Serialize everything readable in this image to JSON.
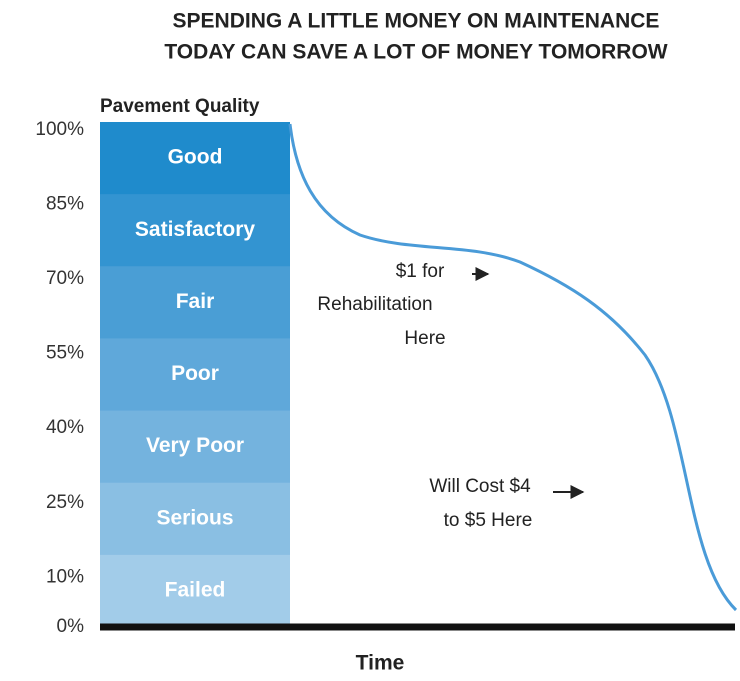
{
  "chart_data": {
    "type": "quality-scale",
    "title_lines": [
      "SPENDING A LITTLE MONEY ON MAINTENANCE",
      "TODAY CAN SAVE A LOT OF MONEY TOMORROW"
    ],
    "y_label": "Pavement Quality",
    "x_label": "Time",
    "categories": [
      "Good",
      "Satisfactory",
      "Fair",
      "Poor",
      "Very Poor",
      "Serious",
      "Failed"
    ],
    "colors": [
      "#1f8bcc",
      "#3394d1",
      "#4a9ed5",
      "#5fa8da",
      "#74b3de",
      "#8abfe3",
      "#a2cce9"
    ],
    "line_color": "#4a9bd8",
    "ylim": [
      0,
      100
    ],
    "yticks": [
      {
        "value": 100,
        "label": "100%"
      },
      {
        "value": 85,
        "label": "85%"
      },
      {
        "value": 70,
        "label": "70%"
      },
      {
        "value": 55,
        "label": "55%"
      },
      {
        "value": 40,
        "label": "40%"
      },
      {
        "value": 25,
        "label": "25%"
      },
      {
        "value": 10,
        "label": "10%"
      },
      {
        "value": 0,
        "label": "0%"
      }
    ],
    "annotations": [
      {
        "lines": [
          "$1 for",
          "Rehabilitation",
          "Here"
        ]
      },
      {
        "lines": [
          "Will Cost $4",
          "to $5 Here"
        ]
      }
    ]
  }
}
